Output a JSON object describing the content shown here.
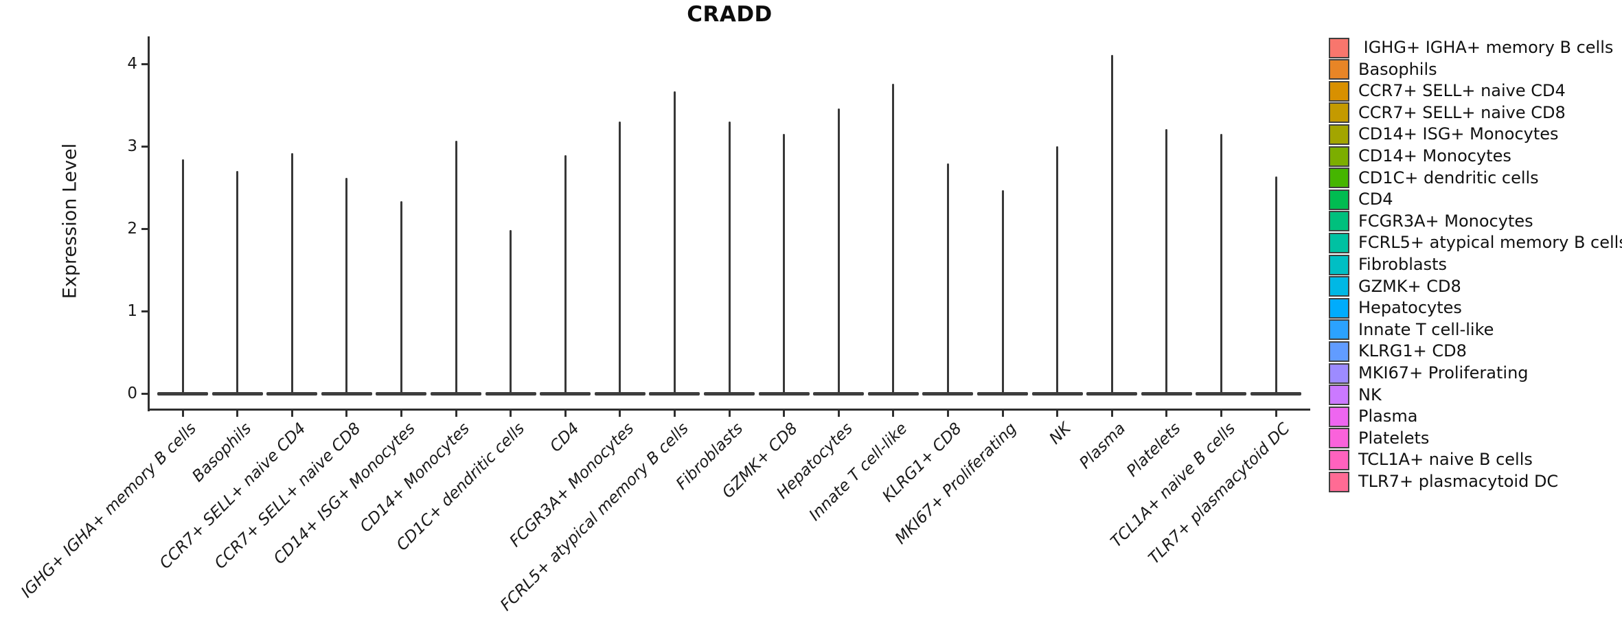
{
  "chart_data": {
    "type": "violin",
    "title": "CRADD",
    "ylabel": "Expression Level",
    "xlabel": "",
    "yticks": [
      0,
      1,
      2,
      3,
      4
    ],
    "ylim": [
      -0.2,
      4.33
    ],
    "grid": false,
    "legend_position": "right",
    "categories": [
      "IGHG+ IGHA+ memory B cells",
      "Basophils",
      "CCR7+ SELL+ naive CD4",
      "CCR7+ SELL+ naive CD8",
      "CD14+ ISG+ Monocytes",
      "CD14+ Monocytes",
      "CD1C+ dendritic cells",
      "CD4",
      "FCGR3A+ Monocytes",
      "FCRL5+ atypical memory B cells",
      "Fibroblasts",
      "GZMK+ CD8",
      "Hepatocytes",
      "Innate T cell-like",
      "KLRG1+ CD8",
      "MKI67+ Proliferating",
      "NK",
      "Plasma",
      "Platelets",
      "TCL1A+ naive B cells",
      "TLR7+ plasmacytoid DC"
    ],
    "series": [
      {
        "name": "violin peak (max expression level)",
        "values": [
          2.84,
          2.7,
          2.92,
          2.62,
          2.33,
          3.07,
          1.98,
          2.89,
          3.3,
          3.67,
          3.3,
          3.15,
          3.46,
          3.76,
          2.79,
          2.47,
          3.0,
          4.11,
          3.21,
          3.15,
          2.63
        ]
      },
      {
        "name": "violin baseline (bulk density at zero)",
        "values": [
          0,
          0,
          0,
          0,
          0,
          0,
          0,
          0,
          0,
          0,
          0,
          0,
          0,
          0,
          0,
          0,
          0,
          0,
          0,
          0,
          0
        ]
      }
    ],
    "colors": [
      "#F8766D",
      "#E88526",
      "#D89000",
      "#C49A00",
      "#A3A500",
      "#7CAE00",
      "#45B500",
      "#00BC51",
      "#00C07D",
      "#00C1A2",
      "#00BFC4",
      "#00B8E5",
      "#00ACFC",
      "#2BA2FF",
      "#619CFF",
      "#9D8BFF",
      "#CB79FF",
      "#EE66F0",
      "#FA62DB",
      "#FF62BE",
      "#FF6B94"
    ]
  },
  "legend": {
    "entries": [
      {
        "label": " IGHG+ IGHA+ memory B cells",
        "color": "#F8766D"
      },
      {
        "label": "Basophils",
        "color": "#E88526"
      },
      {
        "label": "CCR7+ SELL+ naive CD4",
        "color": "#D89000"
      },
      {
        "label": "CCR7+ SELL+ naive CD8",
        "color": "#C49A00"
      },
      {
        "label": "CD14+ ISG+ Monocytes",
        "color": "#A3A500"
      },
      {
        "label": "CD14+ Monocytes",
        "color": "#7CAE00"
      },
      {
        "label": "CD1C+ dendritic cells",
        "color": "#45B500"
      },
      {
        "label": "CD4",
        "color": "#00BC51"
      },
      {
        "label": "FCGR3A+ Monocytes",
        "color": "#00C07D"
      },
      {
        "label": "FCRL5+ atypical memory B cells",
        "color": "#00C1A2"
      },
      {
        "label": "Fibroblasts",
        "color": "#00BFC4"
      },
      {
        "label": "GZMK+ CD8",
        "color": "#00B8E5"
      },
      {
        "label": "Hepatocytes",
        "color": "#00ACFC"
      },
      {
        "label": "Innate T cell-like",
        "color": "#2BA2FF"
      },
      {
        "label": "KLRG1+ CD8",
        "color": "#619CFF"
      },
      {
        "label": "MKI67+ Proliferating",
        "color": "#9D8BFF"
      },
      {
        "label": "NK",
        "color": "#CB79FF"
      },
      {
        "label": "Plasma",
        "color": "#EE66F0"
      },
      {
        "label": "Platelets",
        "color": "#FA62DB"
      },
      {
        "label": "TCL1A+ naive B cells",
        "color": "#FF62BE"
      },
      {
        "label": "TLR7+ plasmacytoid DC",
        "color": "#FF6B94"
      }
    ]
  }
}
